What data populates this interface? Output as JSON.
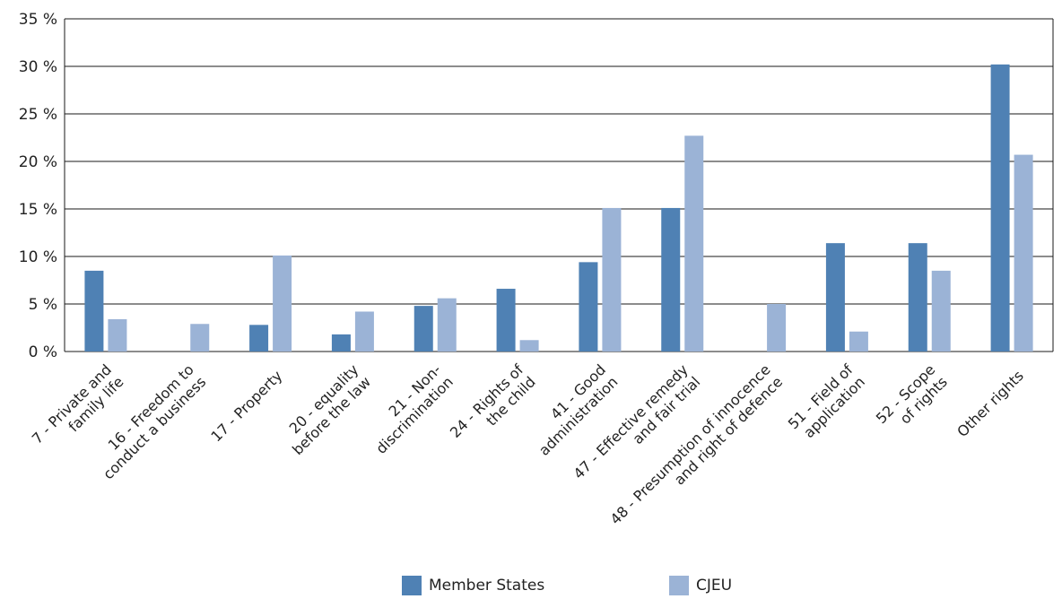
{
  "chart_data": {
    "type": "bar",
    "categories": [
      [
        "7 - Private and",
        "family life"
      ],
      [
        "16 - Freedom to",
        "conduct a business"
      ],
      [
        "17 - Property"
      ],
      [
        "20 - equality",
        "before the law"
      ],
      [
        "21 - Non-",
        "discrimination"
      ],
      [
        "24 - Rights of",
        "the child"
      ],
      [
        "41 - Good",
        "administration"
      ],
      [
        "47 - Effective remedy",
        "and fair trial"
      ],
      [
        "48 - Presumption of innocence",
        "and right of defence"
      ],
      [
        "51 - Field of",
        "application"
      ],
      [
        "52 - Scope",
        "of rights"
      ],
      [
        "Other rights"
      ]
    ],
    "series": [
      {
        "name": "Member States",
        "color": "#4f81b4",
        "values": [
          8.5,
          0,
          2.8,
          1.8,
          4.8,
          6.6,
          9.4,
          15.1,
          0,
          11.4,
          11.4,
          30.2
        ]
      },
      {
        "name": "CJEU",
        "color": "#9bb3d6",
        "values": [
          3.4,
          2.9,
          10.1,
          4.2,
          5.6,
          1.2,
          15.1,
          22.7,
          5.0,
          2.1,
          8.5,
          20.7
        ]
      }
    ],
    "y_ticks": [
      "0 %",
      "5 %",
      "10 %",
      "15 %",
      "20 %",
      "25 %",
      "30 %",
      "35 %"
    ],
    "ylim": [
      0,
      35
    ],
    "grid": true,
    "legend_position": "bottom"
  }
}
